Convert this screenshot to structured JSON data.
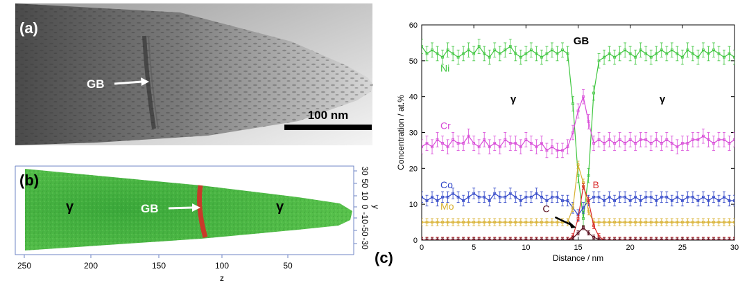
{
  "panel_a": {
    "label": "(a)",
    "gb_label": "GB",
    "scalebar_label": "100 nm"
  },
  "panel_b": {
    "label": "(b)",
    "gb_label": "GB",
    "gamma_left": "γ",
    "gamma_right": "γ",
    "axis_z": {
      "label": "z",
      "ticks": [
        "250",
        "200",
        "150",
        "100",
        "50"
      ]
    },
    "axis_y": {
      "label": "y",
      "ticks": [
        "30",
        "50",
        "10",
        "0",
        "-10",
        "-50",
        "-30"
      ]
    },
    "colors": {
      "matrix": "#3fae2a",
      "boundary": "#c83a2a"
    }
  },
  "panel_c": {
    "label": "(c)",
    "gb_label": "GB",
    "gamma_left": "γ",
    "gamma_right": "γ"
  },
  "chart_data": {
    "type": "line",
    "xlabel": "Distance / nm",
    "ylabel": "Concentration / at.%",
    "xlim": [
      0,
      30
    ],
    "ylim": [
      0,
      60
    ],
    "xticks": [
      0,
      5,
      10,
      15,
      20,
      25,
      30
    ],
    "yticks": [
      0,
      10,
      20,
      30,
      40,
      50,
      60
    ],
    "error_bars": true,
    "x": [
      0,
      0.5,
      1,
      1.5,
      2,
      2.5,
      3,
      3.5,
      4,
      4.5,
      5,
      5.5,
      6,
      6.5,
      7,
      7.5,
      8,
      8.5,
      9,
      9.5,
      10,
      10.5,
      11,
      11.5,
      12,
      12.5,
      13,
      13.5,
      14,
      14.5,
      15,
      15.5,
      16,
      16.5,
      17,
      17.5,
      18,
      18.5,
      19,
      19.5,
      20,
      20.5,
      21,
      21.5,
      22,
      22.5,
      23,
      23.5,
      24,
      24.5,
      25,
      25.5,
      26,
      26.5,
      27,
      27.5,
      28,
      28.5,
      29,
      29.5,
      30
    ],
    "series": [
      {
        "name": "Ni",
        "color": "#3ec63e",
        "label_at": [
          1.8,
          47
        ],
        "values": [
          54,
          52,
          53,
          52,
          51,
          53,
          52,
          51,
          52,
          53,
          52,
          54,
          52,
          51,
          53,
          52,
          53,
          54,
          52,
          51,
          52,
          53,
          52,
          51,
          52,
          53,
          52,
          53,
          52,
          38,
          18,
          6,
          18,
          41,
          50,
          51,
          52,
          51,
          52,
          53,
          52,
          51,
          53,
          52,
          51,
          52,
          53,
          52,
          53,
          52,
          51,
          53,
          52,
          51,
          53,
          52,
          53,
          52,
          51,
          52,
          51
        ],
        "err": 2
      },
      {
        "name": "Cr",
        "color": "#d84ad8",
        "label_at": [
          1.8,
          31
        ],
        "values": [
          26,
          27,
          26,
          28,
          27,
          26,
          28,
          27,
          27,
          29,
          27,
          26,
          28,
          26,
          27,
          26,
          28,
          27,
          27,
          26,
          28,
          27,
          26,
          27,
          25,
          26,
          25,
          25,
          26,
          30,
          36,
          40,
          33,
          27,
          28,
          27,
          28,
          27,
          28,
          27,
          28,
          27,
          28,
          28,
          27,
          28,
          27,
          28,
          27,
          26,
          27,
          27,
          28,
          28,
          29,
          28,
          27,
          28,
          28,
          27,
          28
        ],
        "err": 2
      },
      {
        "name": "Co",
        "color": "#3046c8",
        "label_at": [
          1.8,
          14.5
        ],
        "values": [
          12,
          11,
          12,
          11,
          12,
          12,
          13,
          12,
          11,
          12,
          13,
          12,
          12,
          11,
          13,
          12,
          12,
          13,
          12,
          11,
          12,
          12,
          13,
          12,
          11,
          12,
          12,
          11,
          11,
          9,
          7,
          9,
          11,
          12,
          12,
          11,
          12,
          11,
          12,
          12,
          11,
          12,
          11,
          12,
          12,
          11,
          12,
          12,
          11,
          12,
          11,
          12,
          12,
          11,
          12,
          11,
          12,
          11,
          12,
          11,
          11
        ],
        "err": 1.5
      },
      {
        "name": "Mo",
        "color": "#d8b030",
        "label_at": [
          1.8,
          8.5
        ],
        "values": [
          5,
          5,
          5,
          5,
          5,
          5,
          5,
          5,
          5,
          5,
          5,
          5,
          5,
          5,
          5,
          5,
          5,
          5,
          5,
          5,
          5,
          5,
          5,
          5,
          5,
          5,
          5,
          5,
          5,
          9,
          21,
          16,
          8,
          5,
          5,
          5,
          5,
          5,
          5,
          5,
          5,
          5,
          5,
          5,
          5,
          5,
          5,
          5,
          5,
          5,
          5,
          5,
          5,
          5,
          5,
          5,
          5,
          5,
          5,
          5,
          5
        ],
        "err": 1
      },
      {
        "name": "B",
        "color": "#d82a2a",
        "label_at": [
          16.4,
          14.5
        ],
        "values": [
          0,
          0,
          0,
          0,
          0,
          0,
          0,
          0,
          0,
          0,
          0,
          0,
          0,
          0,
          0,
          0,
          0,
          0,
          0,
          0,
          0,
          0,
          0,
          0,
          0,
          0,
          0,
          0,
          0,
          1,
          6,
          15,
          11,
          4,
          1,
          0,
          0,
          0,
          0,
          0,
          0,
          0,
          0,
          0,
          0,
          0,
          0,
          0,
          0,
          0,
          0,
          0,
          0,
          0,
          0,
          0,
          0,
          0,
          0,
          0,
          0
        ],
        "err": 0.8
      },
      {
        "name": "C",
        "color": "#5a1020",
        "label_at": [
          11.6,
          7.8
        ],
        "values": [
          0,
          0,
          0,
          0,
          0,
          0,
          0,
          0,
          0,
          0,
          0,
          0,
          0,
          0,
          0,
          0,
          0,
          0,
          0,
          0,
          0,
          0,
          0,
          0,
          0,
          0,
          0,
          0,
          0,
          0.5,
          2,
          3.5,
          2,
          0.8,
          0.2,
          0,
          0,
          0,
          0,
          0,
          0,
          0,
          0,
          0,
          0,
          0,
          0,
          0,
          0,
          0,
          0,
          0,
          0,
          0,
          0,
          0,
          0,
          0,
          0,
          0,
          0
        ],
        "err": 0.6
      }
    ]
  }
}
